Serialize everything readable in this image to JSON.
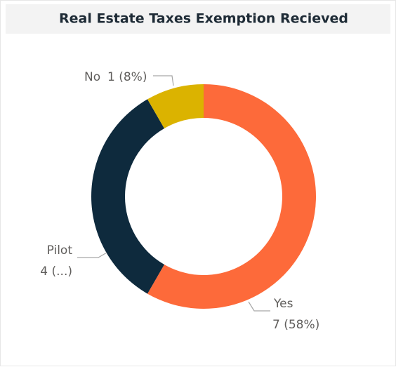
{
  "chart_data": {
    "type": "donut",
    "title": "Real Estate Taxes Exemption Recieved",
    "categories": [
      "Yes",
      "Pilot",
      "No"
    ],
    "values": [
      7,
      4,
      1
    ],
    "value_labels": [
      "7 (58%)",
      "4 (...)",
      "1 (8%)"
    ],
    "colors": [
      "#fd6a3a",
      "#0e2a3d",
      "#dbb300"
    ]
  }
}
